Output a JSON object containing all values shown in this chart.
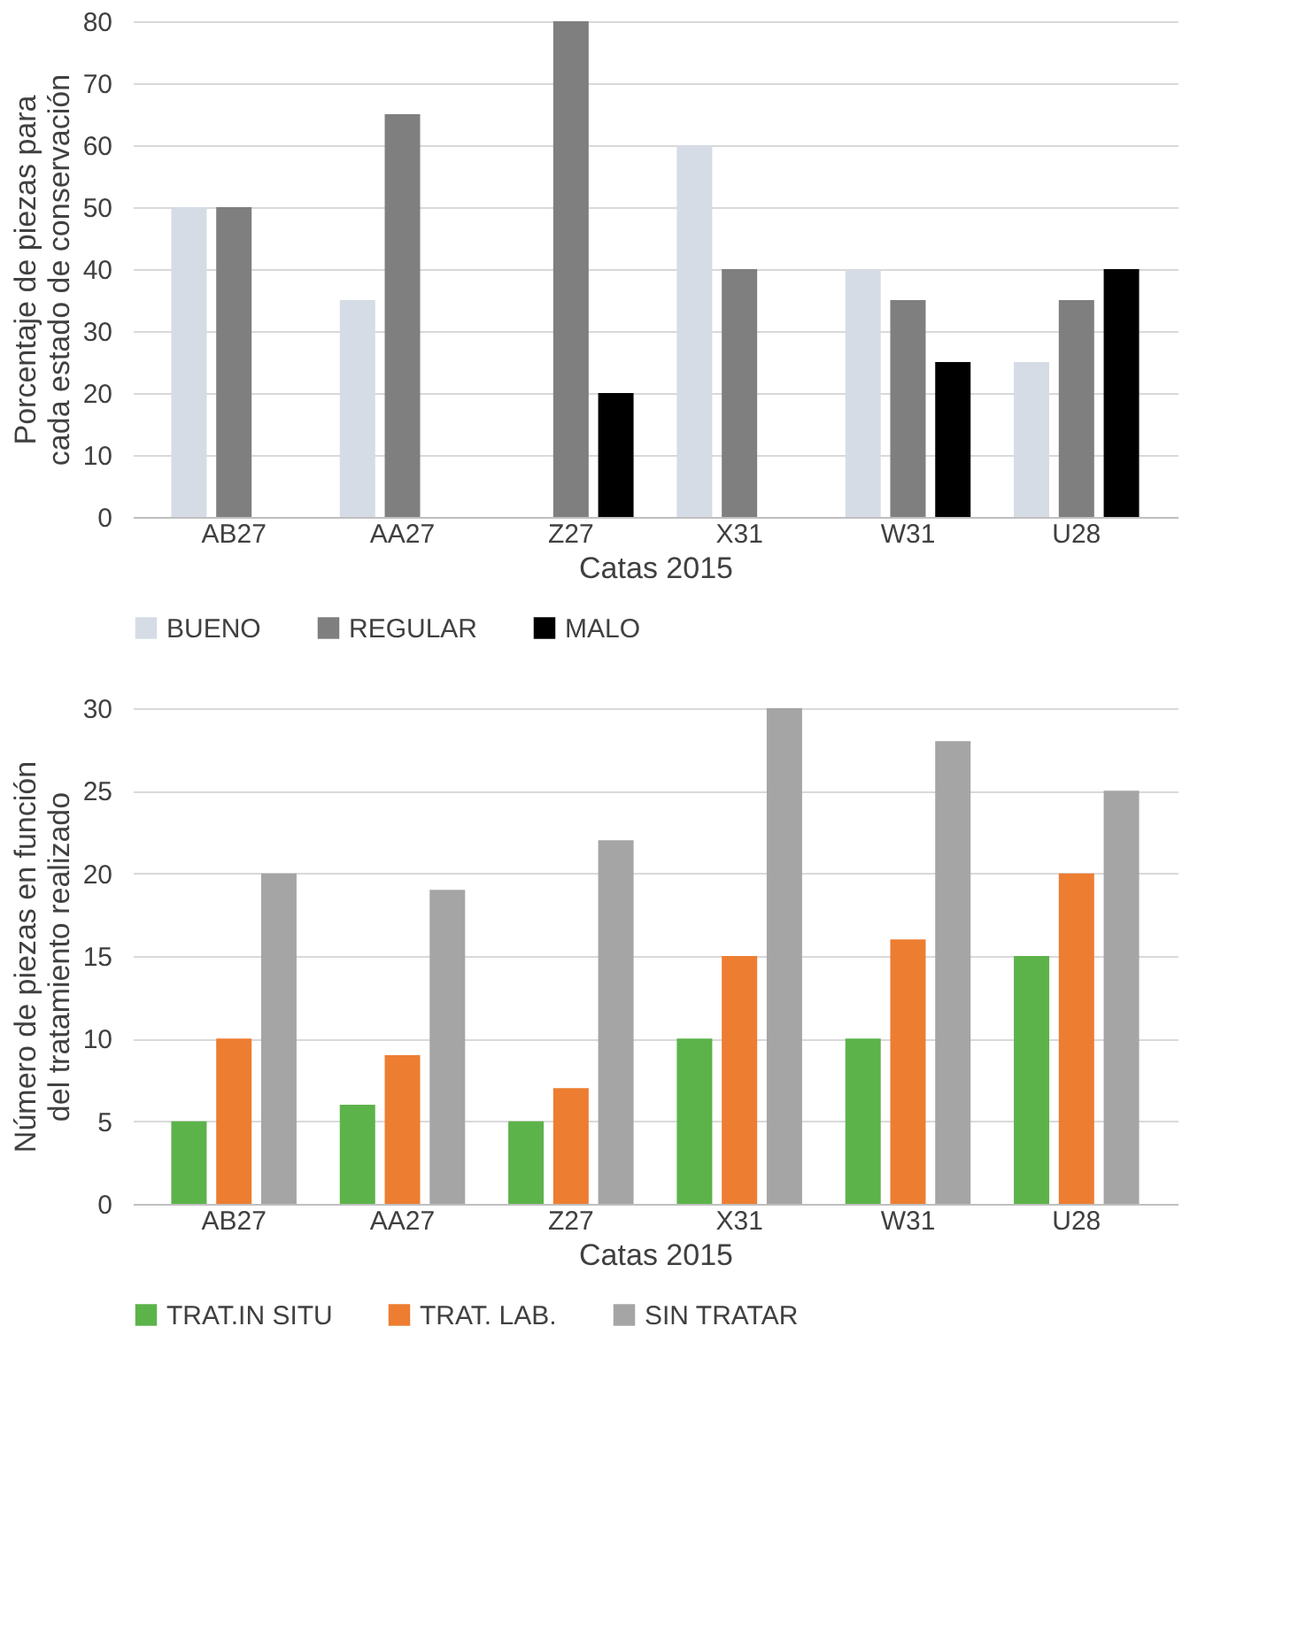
{
  "chart_data": [
    {
      "type": "bar",
      "xlabel": "Catas 2015",
      "ylabel": "Porcentaje de piezas para cada estado de conservación",
      "categories": [
        "AB27",
        "AA27",
        "Z27",
        "X31",
        "W31",
        "U28"
      ],
      "series": [
        {
          "name": "BUENO",
          "color": "#d6dce5",
          "values": [
            50,
            35,
            0,
            60,
            40,
            25
          ]
        },
        {
          "name": "REGULAR",
          "color": "#7f7f7f",
          "values": [
            50,
            65,
            80,
            40,
            35,
            35
          ]
        },
        {
          "name": "MALO",
          "color": "#000000",
          "values": [
            0,
            0,
            20,
            0,
            25,
            40
          ]
        }
      ],
      "ylim": [
        0,
        80
      ],
      "yticks": [
        0,
        10,
        20,
        30,
        40,
        50,
        60,
        70,
        80
      ],
      "grid": "y",
      "legend": "bottom"
    },
    {
      "type": "bar",
      "xlabel": "Catas 2015",
      "ylabel": "Número de piezas en función del tratamiento realizado",
      "categories": [
        "AB27",
        "AA27",
        "Z27",
        "X31",
        "W31",
        "U28"
      ],
      "series": [
        {
          "name": "TRAT.IN SITU",
          "color": "#5cb34a",
          "values": [
            5,
            6,
            5,
            10,
            10,
            15
          ]
        },
        {
          "name": "TRAT. LAB.",
          "color": "#ed7d31",
          "values": [
            10,
            9,
            7,
            15,
            16,
            20
          ]
        },
        {
          "name": "SIN TRATAR",
          "color": "#a5a5a5",
          "values": [
            20,
            19,
            22,
            30,
            28,
            25
          ]
        }
      ],
      "ylim": [
        0,
        30
      ],
      "yticks": [
        0,
        5,
        10,
        15,
        20,
        25,
        30
      ],
      "grid": "y",
      "legend": "bottom"
    }
  ]
}
